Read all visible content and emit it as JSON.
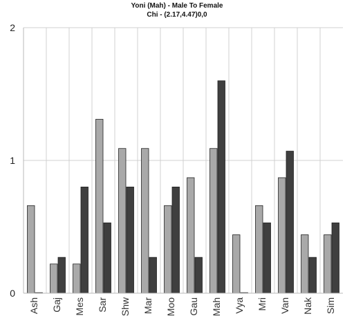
{
  "chart_data": {
    "type": "bar",
    "title": "Yoni (Mah) - Male To Female",
    "subtitle": "Chi - (2.17,4.47)0,0",
    "xlabel": "",
    "ylabel": "",
    "ylim": [
      0,
      2
    ],
    "yticks": [
      0,
      1,
      2
    ],
    "grid": true,
    "categories": [
      "Ash",
      "Gaj",
      "Mes",
      "Sar",
      "Shw",
      "Mar",
      "Moo",
      "Gau",
      "Mah",
      "Vya",
      "Mri",
      "Van",
      "Nak",
      "Sim"
    ],
    "series": [
      {
        "color": "#a9a9a9",
        "values": [
          0.66,
          0.22,
          0.22,
          1.31,
          1.09,
          1.09,
          0.66,
          0.87,
          1.09,
          0.44,
          0.66,
          0.87,
          0.44,
          0.44
        ]
      },
      {
        "color": "#3f3f3f",
        "values": [
          0.0,
          0.27,
          0.8,
          0.53,
          0.8,
          0.27,
          0.8,
          0.27,
          1.6,
          0.0,
          0.53,
          1.07,
          0.27,
          0.53
        ]
      }
    ]
  }
}
